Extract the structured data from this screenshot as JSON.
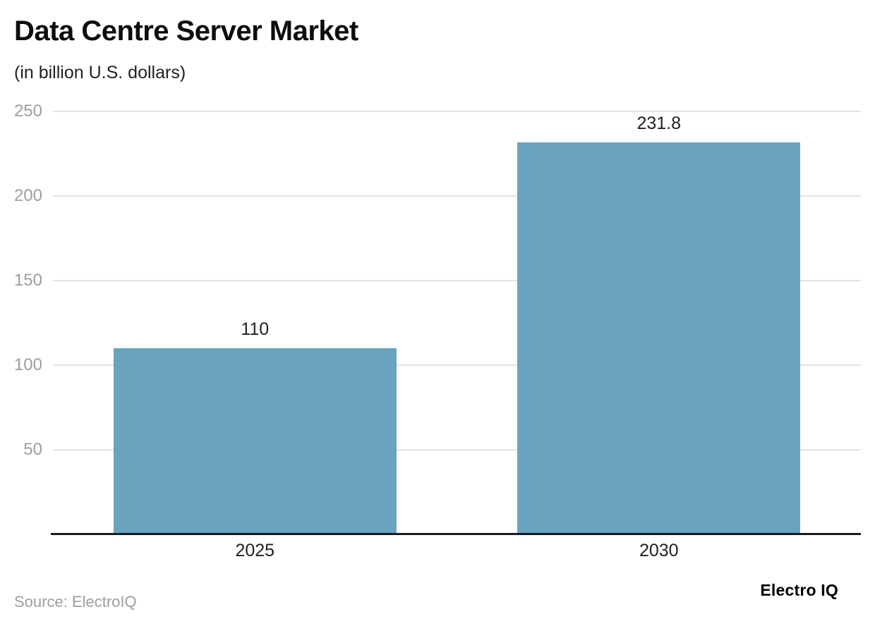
{
  "chart_data": {
    "type": "bar",
    "title": "Data Centre Server Market",
    "subtitle": "(in billion U.S. dollars)",
    "categories": [
      "2025",
      "2030"
    ],
    "values": [
      110,
      231.8
    ],
    "value_labels": [
      "110",
      "231.8"
    ],
    "xlabel": "",
    "ylabel": "",
    "ylim": [
      0,
      250
    ],
    "yticks": [
      50,
      100,
      150,
      200,
      250
    ],
    "grid": true,
    "legend": false,
    "bar_color": "#69A3BD",
    "gridline_color": "#e3e3e3",
    "tick_label_color": "#9e9e9e",
    "axis_line_color": "#1a1a1a"
  },
  "footer": {
    "source": "Source: ElectroIQ",
    "brand": "Electro IQ"
  }
}
